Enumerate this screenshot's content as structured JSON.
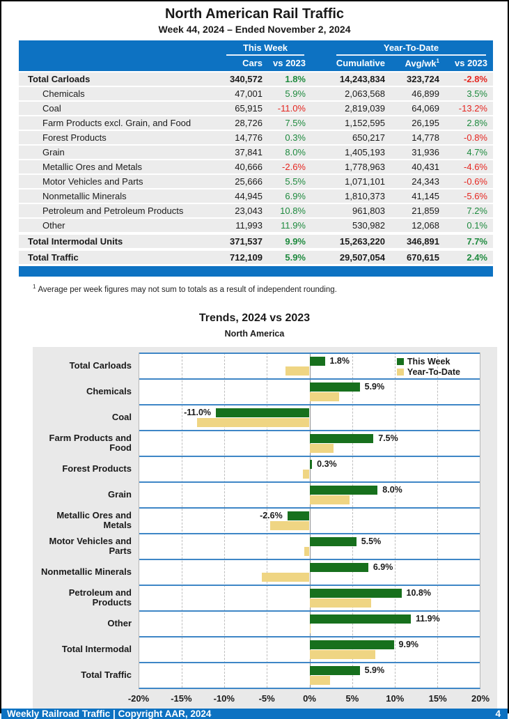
{
  "page": {
    "title": "North American Rail Traffic",
    "subtitle": "Week 44, 2024 – Ended November 2, 2024",
    "footnote_sup": "1",
    "footnote": "Average per week figures may not sum to totals as a result of independent rounding.",
    "footer": {
      "left": "Weekly Railroad Traffic | Copyright AAR, 2024",
      "page_number": "4"
    }
  },
  "colors": {
    "header_blue": "#0d72c2",
    "chart_line_blue": "#3e86c6",
    "positive_green": "#1e8a3e",
    "negative_red": "#e52620",
    "bar_green": "#17701d",
    "bar_yellow": "#efd583"
  },
  "table": {
    "group_headers": {
      "this_week": "This Week",
      "ytd": "Year-To-Date"
    },
    "columns": [
      "Cars",
      "vs 2023",
      "Cumulative",
      "Avg/wk",
      "vs 2023"
    ],
    "avgwk_sup": "1",
    "rows": [
      {
        "label": "Total Carloads",
        "bold": true,
        "indent": false,
        "gap": false,
        "cars": "340,572",
        "tw_pct": "1.8%",
        "cumulative": "14,243,834",
        "avg_wk": "323,724",
        "ytd_pct": "-2.8%"
      },
      {
        "label": "Chemicals",
        "bold": false,
        "indent": true,
        "gap": false,
        "cars": "47,001",
        "tw_pct": "5.9%",
        "cumulative": "2,063,568",
        "avg_wk": "46,899",
        "ytd_pct": "3.5%"
      },
      {
        "label": "Coal",
        "bold": false,
        "indent": true,
        "gap": false,
        "cars": "65,915",
        "tw_pct": "-11.0%",
        "cumulative": "2,819,039",
        "avg_wk": "64,069",
        "ytd_pct": "-13.2%"
      },
      {
        "label": "Farm Products excl. Grain, and Food",
        "bold": false,
        "indent": true,
        "gap": false,
        "cars": "28,726",
        "tw_pct": "7.5%",
        "cumulative": "1,152,595",
        "avg_wk": "26,195",
        "ytd_pct": "2.8%"
      },
      {
        "label": "Forest Products",
        "bold": false,
        "indent": true,
        "gap": false,
        "cars": "14,776",
        "tw_pct": "0.3%",
        "cumulative": "650,217",
        "avg_wk": "14,778",
        "ytd_pct": "-0.8%"
      },
      {
        "label": "Grain",
        "bold": false,
        "indent": true,
        "gap": false,
        "cars": "37,841",
        "tw_pct": "8.0%",
        "cumulative": "1,405,193",
        "avg_wk": "31,936",
        "ytd_pct": "4.7%"
      },
      {
        "label": "Metallic Ores and Metals",
        "bold": false,
        "indent": true,
        "gap": false,
        "cars": "40,666",
        "tw_pct": "-2.6%",
        "cumulative": "1,778,963",
        "avg_wk": "40,431",
        "ytd_pct": "-4.6%"
      },
      {
        "label": "Motor Vehicles and Parts",
        "bold": false,
        "indent": true,
        "gap": false,
        "cars": "25,666",
        "tw_pct": "5.5%",
        "cumulative": "1,071,101",
        "avg_wk": "24,343",
        "ytd_pct": "-0.6%"
      },
      {
        "label": "Nonmetallic Minerals",
        "bold": false,
        "indent": true,
        "gap": false,
        "cars": "44,945",
        "tw_pct": "6.9%",
        "cumulative": "1,810,373",
        "avg_wk": "41,145",
        "ytd_pct": "-5.6%"
      },
      {
        "label": "Petroleum and Petroleum Products",
        "bold": false,
        "indent": true,
        "gap": false,
        "cars": "23,043",
        "tw_pct": "10.8%",
        "cumulative": "961,803",
        "avg_wk": "21,859",
        "ytd_pct": "7.2%"
      },
      {
        "label": "Other",
        "bold": false,
        "indent": true,
        "gap": false,
        "cars": "11,993",
        "tw_pct": "11.9%",
        "cumulative": "530,982",
        "avg_wk": "12,068",
        "ytd_pct": "0.1%"
      },
      {
        "label": "Total Intermodal Units",
        "bold": true,
        "indent": false,
        "gap": true,
        "cars": "371,537",
        "tw_pct": "9.9%",
        "cumulative": "15,263,220",
        "avg_wk": "346,891",
        "ytd_pct": "7.7%"
      },
      {
        "label": "Total Traffic",
        "bold": true,
        "indent": false,
        "gap": true,
        "cars": "712,109",
        "tw_pct": "5.9%",
        "cumulative": "29,507,054",
        "avg_wk": "670,615",
        "ytd_pct": "2.4%"
      }
    ]
  },
  "chart_data": {
    "type": "bar",
    "orientation": "horizontal",
    "title": "Trends, 2024 vs 2023",
    "subtitle": "North America",
    "categories": [
      "Total Carloads",
      "Chemicals",
      "Coal",
      "Farm Products and Food",
      "Forest Products",
      "Grain",
      "Metallic Ores and Metals",
      "Motor Vehicles and Parts",
      "Nonmetallic Minerals",
      "Petroleum and Products",
      "Other",
      "Total Intermodal",
      "Total Traffic"
    ],
    "series": [
      {
        "name": "This Week",
        "color": "#17701d",
        "values": [
          1.8,
          5.9,
          -11.0,
          7.5,
          0.3,
          8.0,
          -2.6,
          5.5,
          6.9,
          10.8,
          11.9,
          9.9,
          5.9
        ]
      },
      {
        "name": "Year-To-Date",
        "color": "#efd583",
        "values": [
          -2.8,
          3.5,
          -13.2,
          2.8,
          -0.8,
          4.7,
          -4.6,
          -0.6,
          -5.6,
          7.2,
          0.1,
          7.7,
          2.4
        ]
      }
    ],
    "bar_labels": [
      "1.8%",
      "5.9%",
      "-11.0%",
      "7.5%",
      "0.3%",
      "8.0%",
      "-2.6%",
      "5.5%",
      "6.9%",
      "10.8%",
      "11.9%",
      "9.9%",
      "5.9%"
    ],
    "xlim": [
      -20,
      20
    ],
    "xtick_values": [
      -20,
      -15,
      -10,
      -5,
      0,
      5,
      10,
      15,
      20
    ],
    "xticks": [
      "-20%",
      "-15%",
      "-10%",
      "-5%",
      "0%",
      "5%",
      "10%",
      "15%",
      "20%"
    ],
    "legend_position": "top-right",
    "grid": true
  }
}
